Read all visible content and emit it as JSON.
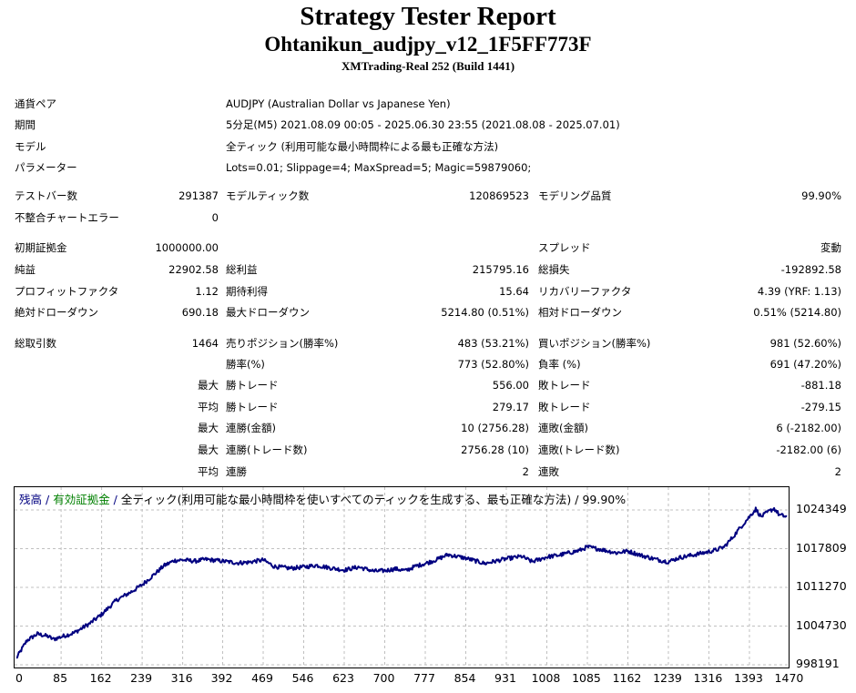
{
  "header": {
    "title": "Strategy Tester Report",
    "ea_name": "Ohtanikun_audjpy_v12_1F5FF773F",
    "server": "XMTrading-Real 252 (Build 1441)"
  },
  "info": [
    {
      "label": "通貨ペア",
      "value": "AUDJPY (Australian Dollar vs Japanese Yen)"
    },
    {
      "label": "期間",
      "value": "5分足(M5) 2021.08.09 00:05 - 2025.06.30 23:55 (2021.08.08 - 2025.07.01)"
    },
    {
      "label": "モデル",
      "value": "全ティック (利用可能な最小時間枠による最も正確な方法)"
    },
    {
      "label": "パラメーター",
      "value": "Lots=0.01; Slippage=4; MaxSpread=5; Magic=59879060;"
    }
  ],
  "stats": [
    {
      "cells": [
        {
          "l": "テストバー数",
          "v": "291387"
        },
        {
          "l": "モデルティック数",
          "v": "120869523"
        },
        {
          "l": "モデリング品質",
          "v": "99.90%"
        }
      ]
    },
    {
      "cells": [
        {
          "l": "不整合チャートエラー",
          "v": "0"
        },
        {
          "l": "",
          "v": ""
        },
        {
          "l": "",
          "v": ""
        }
      ]
    },
    {
      "cells": [
        {
          "l": "初期証拠金",
          "v": "1000000.00"
        },
        {
          "l": "",
          "v": ""
        },
        {
          "l": "スプレッド",
          "v": "変動"
        }
      ]
    },
    {
      "cells": [
        {
          "l": "純益",
          "v": "22902.58"
        },
        {
          "l": "総利益",
          "v": "215795.16"
        },
        {
          "l": "総損失",
          "v": "-192892.58"
        }
      ]
    },
    {
      "cells": [
        {
          "l": "プロフィットファクタ",
          "v": "1.12"
        },
        {
          "l": "期待利得",
          "v": "15.64"
        },
        {
          "l": "リカバリーファクタ",
          "v": "4.39 (YRF: 1.13)"
        }
      ]
    },
    {
      "cells": [
        {
          "l": "絶対ドローダウン",
          "v": "690.18"
        },
        {
          "l": "最大ドローダウン",
          "v": "5214.80 (0.51%)"
        },
        {
          "l": "相対ドローダウン",
          "v": "0.51% (5214.80)"
        }
      ]
    },
    {
      "cells": [
        {
          "l": "総取引数",
          "v": "1464"
        },
        {
          "l": "売りポジション(勝率%)",
          "v": "483 (53.21%)"
        },
        {
          "l": "買いポジション(勝率%)",
          "v": "981 (52.60%)"
        }
      ]
    },
    {
      "cells": [
        {
          "l": "",
          "v": ""
        },
        {
          "l": "勝率(%)",
          "v": "773 (52.80%)"
        },
        {
          "l": "負率 (%)",
          "v": "691 (47.20%)"
        }
      ]
    },
    {
      "cells": [
        {
          "l": "",
          "v": "最大"
        },
        {
          "l": "勝トレード",
          "v": "556.00"
        },
        {
          "l": "敗トレード",
          "v": "-881.18"
        }
      ]
    },
    {
      "cells": [
        {
          "l": "",
          "v": "平均"
        },
        {
          "l": "勝トレード",
          "v": "279.17"
        },
        {
          "l": "敗トレード",
          "v": "-279.15"
        }
      ]
    },
    {
      "cells": [
        {
          "l": "",
          "v": "最大"
        },
        {
          "l": "連勝(金額)",
          "v": "10 (2756.28)"
        },
        {
          "l": "連敗(金額)",
          "v": "6 (-2182.00)"
        }
      ]
    },
    {
      "cells": [
        {
          "l": "",
          "v": "最大"
        },
        {
          "l": "連勝(トレード数)",
          "v": "2756.28 (10)"
        },
        {
          "l": "連敗(トレード数)",
          "v": "-2182.00 (6)"
        }
      ]
    },
    {
      "cells": [
        {
          "l": "",
          "v": "平均"
        },
        {
          "l": "連勝",
          "v": "2"
        },
        {
          "l": "連敗",
          "v": "2"
        }
      ]
    }
  ],
  "chart_data": {
    "type": "line",
    "legend": {
      "balance": "残高",
      "sep1": " / ",
      "equity": "有効証拠金",
      "sep2": " / ",
      "model": "全ティック(利用可能な最小時間枠を使いすべてのティックを生成する、最も正確な方法)",
      "sep3": " / ",
      "quality": "99.90%"
    },
    "colors": {
      "balance": "#000080",
      "equity": "#008000",
      "grid": "#c0c0c0"
    },
    "xlabel": "",
    "ylabel": "",
    "grid": true,
    "x_ticks": [
      0,
      85,
      162,
      239,
      316,
      392,
      469,
      546,
      623,
      700,
      777,
      854,
      931,
      1008,
      1085,
      1162,
      1239,
      1316,
      1393,
      1470
    ],
    "y_ticks": [
      998191,
      1004730,
      1011270,
      1017809,
      1024349
    ],
    "xlim": [
      0,
      1464
    ],
    "ylim": [
      998191,
      1024349
    ],
    "series": [
      {
        "name": "残高",
        "x": [
          0,
          20,
          40,
          60,
          70,
          85,
          110,
          140,
          162,
          190,
          220,
          239,
          260,
          280,
          300,
          316,
          340,
          360,
          392,
          420,
          440,
          469,
          490,
          520,
          546,
          570,
          600,
          623,
          650,
          680,
          700,
          720,
          740,
          760,
          777,
          800,
          820,
          854,
          870,
          890,
          910,
          931,
          960,
          980,
          1008,
          1030,
          1050,
          1070,
          1085,
          1110,
          1140,
          1162,
          1190,
          1220,
          1239,
          1260,
          1290,
          1316,
          1330,
          1345,
          1360,
          1375,
          1393,
          1405,
          1415,
          1430,
          1440,
          1450,
          1464
        ],
        "y": [
          999300,
          1002300,
          1003400,
          1003000,
          1002500,
          1002900,
          1003600,
          1005200,
          1006700,
          1009100,
          1010600,
          1011700,
          1013300,
          1014900,
          1015800,
          1015900,
          1015700,
          1016000,
          1015700,
          1015400,
          1015500,
          1015900,
          1014800,
          1014500,
          1014700,
          1015000,
          1014500,
          1014200,
          1014700,
          1014000,
          1014100,
          1014400,
          1014100,
          1014900,
          1015300,
          1016000,
          1016800,
          1016200,
          1015800,
          1015300,
          1015700,
          1016100,
          1016500,
          1015600,
          1016400,
          1016700,
          1017100,
          1017500,
          1018100,
          1017700,
          1017100,
          1017400,
          1016600,
          1015900,
          1015600,
          1016300,
          1016800,
          1017300,
          1017600,
          1018100,
          1019600,
          1021300,
          1023200,
          1024500,
          1023200,
          1024100,
          1024600,
          1023500,
          1023200
        ]
      }
    ]
  }
}
